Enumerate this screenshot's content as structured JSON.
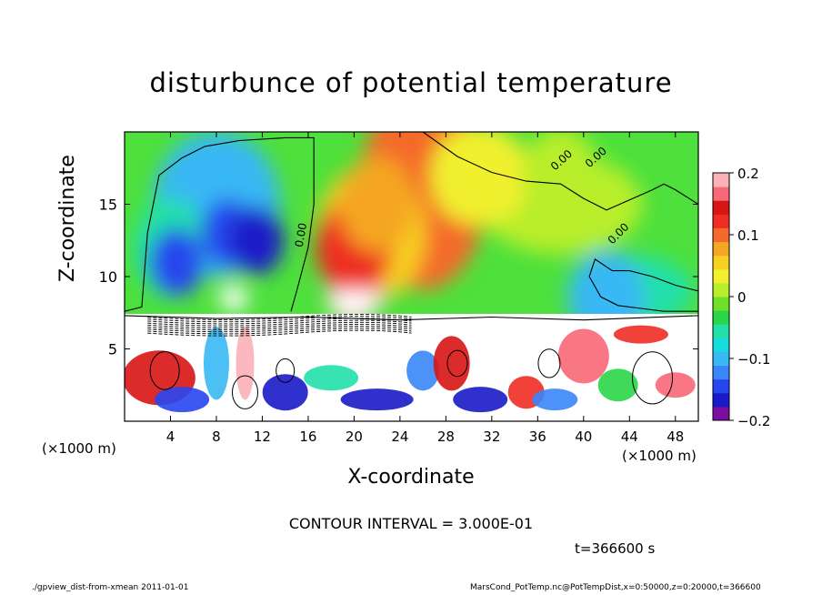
{
  "colors": {
    "colorbar": [
      "#7a0ea0",
      "#1a1ac8",
      "#2846ee",
      "#3a86f8",
      "#38b8f4",
      "#14dcdc",
      "#20e0a8",
      "#2ad648",
      "#6ee02a",
      "#b8ee2a",
      "#f0f02e",
      "#f8d020",
      "#f4a624",
      "#f46a2c",
      "#ee2e24",
      "#d81414",
      "#f86878",
      "#fcb0b8"
    ]
  },
  "chart_data": {
    "type": "heatmap",
    "title": "disturbunce of potential temperature",
    "xlabel": "X-coordinate",
    "ylabel": "Z-coordinate",
    "x_unit": "(×1000 m)",
    "y_unit": "(×1000 m)",
    "xlim": [
      0,
      50
    ],
    "ylim": [
      0,
      20
    ],
    "x_ticks": [
      4,
      8,
      12,
      16,
      20,
      24,
      28,
      32,
      36,
      40,
      44,
      48
    ],
    "y_ticks": [
      5,
      10,
      15
    ],
    "colorbar": {
      "range": [
        -0.2,
        0.2
      ],
      "ticks": [
        0.2,
        0.1,
        0,
        -0.1,
        -0.2
      ],
      "tick_labels": [
        "0.2",
        "0.1",
        "0",
        "−0.1",
        "−0.2"
      ]
    },
    "contour_labels": [
      "0.00",
      "0.00",
      "0.00",
      "0.00"
    ],
    "features": [
      {
        "x": 9,
        "z": 13,
        "value": -0.15
      },
      {
        "x": 4.5,
        "z": 11,
        "value": -0.15
      },
      {
        "x": 11.5,
        "z": 12.5,
        "value": -0.16
      },
      {
        "x": 20,
        "z": 9,
        "value": 0.2
      },
      {
        "x": 20,
        "z": 12,
        "value": 0.13
      },
      {
        "x": 22,
        "z": 15,
        "value": 0.08
      },
      {
        "x": 42,
        "z": 8.5,
        "value": -0.09
      },
      {
        "x": 30,
        "z": 17,
        "value": 0.04
      },
      {
        "x": 38,
        "z": 17,
        "value": 0.02
      }
    ],
    "contour_interval": "CONTOUR INTERVAL = 3.000E-01",
    "time": "t=366600 s"
  },
  "footer": {
    "left": "./gpview_dist-from-xmean  2011-01-01",
    "right": "MarsCond_PotTemp.nc@PotTempDist,x=0:50000,z=0:20000,t=366600"
  }
}
